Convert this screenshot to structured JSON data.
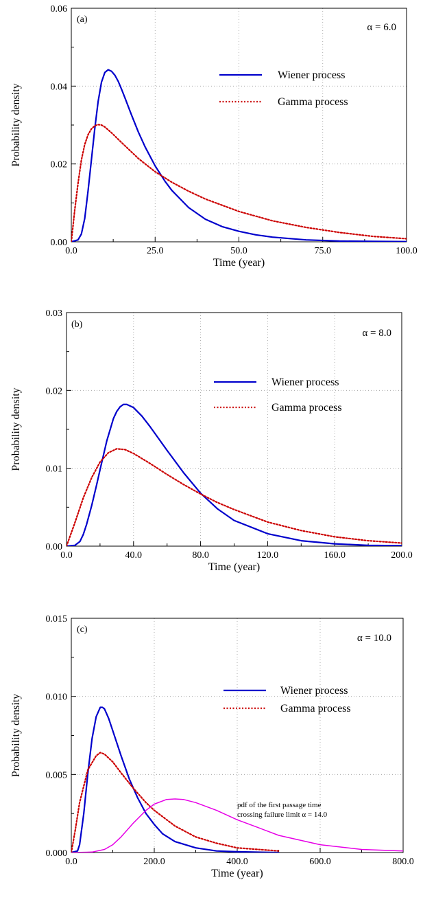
{
  "chart_data": [
    {
      "type": "line",
      "panel_label": "(a)",
      "alpha_label": "α = 6.0",
      "xlabel": "Time (year)",
      "ylabel": "Probability density",
      "xlim": [
        0,
        100
      ],
      "ylim": [
        0,
        0.06
      ],
      "xticks": [
        0,
        25,
        50,
        75,
        100
      ],
      "xtick_labels": [
        "0.0",
        "25.0",
        "50.0",
        "75.0",
        "100.0"
      ],
      "yticks": [
        0,
        0.02,
        0.04,
        0.06
      ],
      "ytick_labels": [
        "0.00",
        "0.02",
        "0.04",
        "0.06"
      ],
      "grid": true,
      "legend_position": "upper-right",
      "series": [
        {
          "name": "Wiener process",
          "color": "#0000cc",
          "style": "solid",
          "x": [
            0,
            2,
            3,
            4,
            5,
            6,
            7,
            8,
            9,
            10,
            11,
            12,
            13,
            14,
            15,
            16,
            18,
            20,
            22,
            25,
            28,
            30,
            35,
            40,
            45,
            50,
            55,
            60,
            70,
            80,
            90,
            100
          ],
          "y": [
            0,
            0.0005,
            0.002,
            0.006,
            0.013,
            0.021,
            0.029,
            0.036,
            0.041,
            0.0435,
            0.0442,
            0.0438,
            0.0428,
            0.0412,
            0.0392,
            0.037,
            0.0325,
            0.0282,
            0.0244,
            0.0195,
            0.0155,
            0.0132,
            0.0088,
            0.0058,
            0.0039,
            0.0027,
            0.0018,
            0.0012,
            0.0005,
            0.0002,
            0.0001,
            5e-05
          ]
        },
        {
          "name": "Gamma process",
          "color": "#cc0000",
          "style": "dotted",
          "x": [
            0,
            1,
            2,
            3,
            4,
            5,
            6,
            7,
            8,
            9,
            10,
            12,
            15,
            20,
            25,
            30,
            35,
            40,
            50,
            60,
            70,
            80,
            90,
            100
          ],
          "y": [
            0,
            0.008,
            0.015,
            0.021,
            0.025,
            0.0275,
            0.029,
            0.0298,
            0.0301,
            0.03,
            0.0295,
            0.028,
            0.0255,
            0.0214,
            0.018,
            0.0153,
            0.013,
            0.011,
            0.0078,
            0.0054,
            0.0037,
            0.0024,
            0.0014,
            0.0008
          ]
        }
      ]
    },
    {
      "type": "line",
      "panel_label": "(b)",
      "alpha_label": "α = 8.0",
      "xlabel": "Time (year)",
      "ylabel": "Probability density",
      "xlim": [
        0,
        200
      ],
      "ylim": [
        0,
        0.03
      ],
      "xticks": [
        0,
        40,
        80,
        120,
        160,
        200
      ],
      "xtick_labels": [
        "0.0",
        "40.0",
        "80.0",
        "120.0",
        "160.0",
        "200.0"
      ],
      "yticks": [
        0,
        0.01,
        0.02,
        0.03
      ],
      "ytick_labels": [
        "0.00",
        "0.01",
        "0.02",
        "0.03"
      ],
      "grid": true,
      "legend_position": "upper-right",
      "series": [
        {
          "name": "Wiener process",
          "color": "#0000cc",
          "style": "solid",
          "x": [
            0,
            5,
            8,
            10,
            12,
            15,
            18,
            20,
            24,
            28,
            30,
            32,
            34,
            36,
            40,
            45,
            50,
            55,
            60,
            70,
            80,
            90,
            100,
            120,
            140,
            160,
            180,
            200
          ],
          "y": [
            0,
            0.0001,
            0.0006,
            0.0015,
            0.0028,
            0.0052,
            0.0079,
            0.0098,
            0.0135,
            0.0164,
            0.0173,
            0.0179,
            0.0182,
            0.0182,
            0.0178,
            0.0167,
            0.0153,
            0.0138,
            0.0123,
            0.0094,
            0.0068,
            0.0048,
            0.0033,
            0.0016,
            0.0007,
            0.0003,
            0.0001,
            5e-05
          ]
        },
        {
          "name": "Gamma process",
          "color": "#cc0000",
          "style": "dotted",
          "x": [
            0,
            2,
            5,
            10,
            15,
            20,
            25,
            30,
            35,
            40,
            50,
            60,
            70,
            80,
            90,
            100,
            120,
            140,
            160,
            180,
            200
          ],
          "y": [
            0,
            0.0012,
            0.003,
            0.0062,
            0.0088,
            0.0108,
            0.012,
            0.0125,
            0.0124,
            0.0119,
            0.0106,
            0.0092,
            0.0079,
            0.0067,
            0.0056,
            0.0047,
            0.0031,
            0.002,
            0.0012,
            0.0007,
            0.0004
          ]
        }
      ]
    },
    {
      "type": "line",
      "panel_label": "(c)",
      "alpha_label": "α = 10.0",
      "xlabel": "Time (year)",
      "ylabel": "Probability density",
      "xlim": [
        0,
        800
      ],
      "ylim": [
        0,
        0.015
      ],
      "xticks": [
        0,
        200,
        400,
        600,
        800
      ],
      "xtick_labels": [
        "0.0",
        "200.0",
        "400.0",
        "600.0",
        "800.0"
      ],
      "yticks": [
        0,
        0.005,
        0.01,
        0.015
      ],
      "ytick_labels": [
        "0.000",
        "0.005",
        "0.010",
        "0.015"
      ],
      "grid": true,
      "legend_position": "upper-right",
      "annotation": [
        "pdf of the first passage time",
        "crossing failure limit α = 14.0"
      ],
      "series": [
        {
          "name": "Wiener process",
          "color": "#0000cc",
          "style": "solid",
          "x": [
            0,
            15,
            20,
            30,
            40,
            50,
            60,
            70,
            75,
            80,
            90,
            100,
            120,
            140,
            160,
            180,
            200,
            220,
            250,
            300,
            350,
            400,
            450,
            500
          ],
          "y": [
            0,
            0.0001,
            0.0005,
            0.0025,
            0.0051,
            0.0073,
            0.0087,
            0.0093,
            0.0093,
            0.0092,
            0.0086,
            0.0078,
            0.0062,
            0.0047,
            0.0035,
            0.0025,
            0.0018,
            0.0012,
            0.0007,
            0.0003,
            0.0001,
            5e-05,
            2e-05,
            0
          ]
        },
        {
          "name": "Gamma process",
          "color": "#cc0000",
          "style": "dotted",
          "x": [
            0,
            10,
            20,
            40,
            60,
            70,
            80,
            100,
            120,
            150,
            180,
            200,
            250,
            300,
            350,
            400,
            450,
            500
          ],
          "y": [
            0,
            0.0015,
            0.0032,
            0.0053,
            0.0062,
            0.0064,
            0.0063,
            0.0058,
            0.0051,
            0.0041,
            0.0032,
            0.0027,
            0.0017,
            0.001,
            0.0006,
            0.0003,
            0.0002,
            0.0001
          ]
        },
        {
          "name": "",
          "color": "#e600e6",
          "style": "solid",
          "x": [
            0,
            50,
            80,
            100,
            120,
            150,
            180,
            200,
            230,
            250,
            270,
            300,
            350,
            400,
            450,
            500,
            600,
            700,
            800
          ],
          "y": [
            0,
            3e-05,
            0.0002,
            0.0005,
            0.001,
            0.0019,
            0.0027,
            0.0031,
            0.0034,
            0.00343,
            0.0034,
            0.0032,
            0.0027,
            0.0021,
            0.0016,
            0.0011,
            0.0005,
            0.0002,
            0.0001
          ]
        }
      ]
    }
  ]
}
